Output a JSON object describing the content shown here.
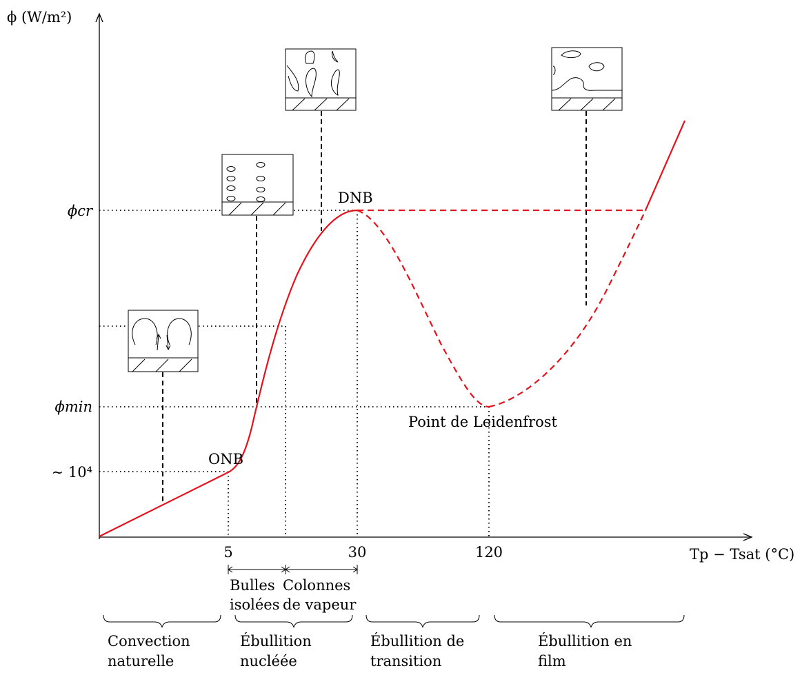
{
  "axes": {
    "y_label": "ϕ (W/m²)",
    "x_label": "Tp − Tsat (°C)"
  },
  "y_ticks": {
    "phi_cr": "ϕcr",
    "phi_min": "ϕmin",
    "ten4": "∼ 10⁴"
  },
  "x_ticks": [
    "5",
    "30",
    "120"
  ],
  "points": {
    "onb": "ONB",
    "dnb": "DNB",
    "leidenfrost": "Point de Leidenfrost"
  },
  "sub_regimes": {
    "bulles": [
      "Bulles",
      "isolées"
    ],
    "colonnes": [
      "Colonnes",
      "de vapeur"
    ]
  },
  "regimes": [
    [
      "Convection",
      "naturelle"
    ],
    [
      "Ébullition",
      "nucléée"
    ],
    [
      "Ébullition de",
      "transition"
    ],
    [
      "Ébullition en",
      "film"
    ]
  ],
  "colors": {
    "curve": "#e8101a",
    "lines": "#000000"
  }
}
